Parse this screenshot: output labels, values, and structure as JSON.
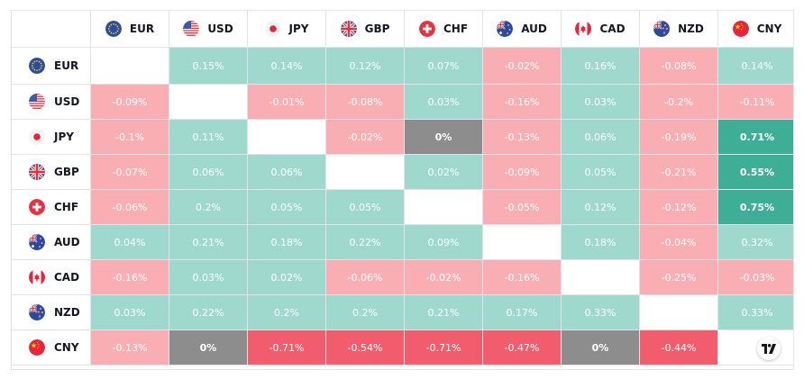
{
  "currencies": [
    {
      "code": "EUR",
      "flag": "eu-flag-icon"
    },
    {
      "code": "USD",
      "flag": "us-flag-icon"
    },
    {
      "code": "JPY",
      "flag": "jp-flag-icon"
    },
    {
      "code": "GBP",
      "flag": "gb-flag-icon"
    },
    {
      "code": "CHF",
      "flag": "ch-flag-icon"
    },
    {
      "code": "AUD",
      "flag": "au-flag-icon"
    },
    {
      "code": "CAD",
      "flag": "ca-flag-icon"
    },
    {
      "code": "NZD",
      "flag": "nz-flag-icon"
    },
    {
      "code": "CNY",
      "flag": "cn-flag-icon"
    }
  ],
  "matrix": [
    [
      null,
      "0.15%",
      "0.14%",
      "0.12%",
      "0.07%",
      "-0.02%",
      "0.16%",
      "-0.08%",
      "0.14%"
    ],
    [
      "-0.09%",
      null,
      "-0.01%",
      "-0.08%",
      "0.03%",
      "-0.16%",
      "0.03%",
      "-0.2%",
      "-0.11%"
    ],
    [
      "-0.1%",
      "0.11%",
      null,
      "-0.02%",
      "0%",
      "-0.13%",
      "0.06%",
      "-0.19%",
      "0.71%"
    ],
    [
      "-0.07%",
      "0.06%",
      "0.06%",
      null,
      "0.02%",
      "-0.09%",
      "0.05%",
      "-0.21%",
      "0.55%"
    ],
    [
      "-0.06%",
      "0.2%",
      "0.05%",
      "0.05%",
      null,
      "-0.05%",
      "0.12%",
      "-0.12%",
      "0.75%"
    ],
    [
      "0.04%",
      "0.21%",
      "0.18%",
      "0.22%",
      "0.09%",
      null,
      "0.18%",
      "-0.04%",
      "0.32%"
    ],
    [
      "-0.16%",
      "0.03%",
      "0.02%",
      "-0.06%",
      "-0.02%",
      "-0.16%",
      null,
      "-0.25%",
      "-0.03%"
    ],
    [
      "0.03%",
      "0.22%",
      "0.2%",
      "0.2%",
      "0.21%",
      "0.17%",
      "0.33%",
      null,
      "0.33%"
    ],
    [
      "-0.13%",
      "0%",
      "-0.71%",
      "-0.54%",
      "-0.71%",
      "-0.47%",
      "0%",
      "-0.44%",
      null
    ]
  ],
  "colors": {
    "positive_light": "#9fd9ce",
    "positive_strong": "#3eae97",
    "negative_light": "#f9aeb3",
    "negative_strong": "#f15d6d",
    "neutral": "#8d8d8d",
    "diagonal": "#ffffff",
    "text": "#131722"
  },
  "branding": {
    "logo": "tradingview-logo-icon"
  }
}
